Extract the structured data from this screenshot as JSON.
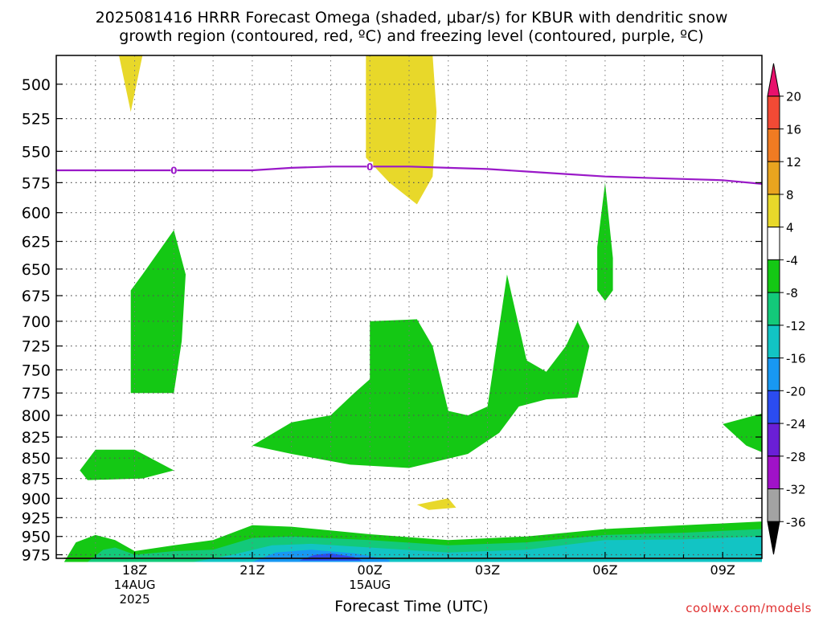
{
  "chart_data": {
    "type": "heatmap",
    "title_line1": "2025081416 HRRR Forecast Omega (shaded, μbar/s) for KBUR with dendritic snow",
    "title_line2": "growth region (contoured, red, ºC) and freezing level (contoured, purple, ºC)",
    "xlabel": "Forecast Time (UTC)",
    "credit": "coolwx.com/models",
    "y_ticks": [
      500,
      525,
      550,
      575,
      600,
      625,
      650,
      675,
      700,
      725,
      750,
      775,
      800,
      825,
      850,
      875,
      900,
      925,
      950,
      975
    ],
    "y_tick_labels": [
      "500",
      "525",
      "550",
      "575",
      "600",
      "625",
      "650",
      "675",
      "700",
      "725",
      "750",
      "775",
      "800",
      "825",
      "850",
      "875",
      "900",
      "925",
      "950",
      "975"
    ],
    "x_ticks": [
      {
        "label": "18Z",
        "sub1": "14AUG",
        "sub2": "2025",
        "hour": 18
      },
      {
        "label": "21Z",
        "sub1": "",
        "sub2": "",
        "hour": 21
      },
      {
        "label": "00Z",
        "sub1": "15AUG",
        "sub2": "",
        "hour": 24
      },
      {
        "label": "03Z",
        "sub1": "",
        "sub2": "",
        "hour": 27
      },
      {
        "label": "06Z",
        "sub1": "",
        "sub2": "",
        "hour": 30
      },
      {
        "label": "09Z",
        "sub1": "",
        "sub2": "",
        "hour": 33
      }
    ],
    "x_range_hours": [
      16,
      34
    ],
    "y_range_hpa": [
      480,
      980
    ],
    "y_scale": "log",
    "colorbar": {
      "labels": [
        "20",
        "16",
        "12",
        "8",
        "4",
        "-4",
        "-8",
        "-12",
        "-16",
        "-20",
        "-24",
        "-28",
        "-32",
        "-36"
      ],
      "colors": [
        "#e8116c",
        "#f24a35",
        "#f07b22",
        "#e9a41f",
        "#e8d82a",
        "#ffffff",
        "#14c814",
        "#13c97a",
        "#12c4c4",
        "#1898f2",
        "#2b4cf0",
        "#6a1fd6",
        "#a012c8",
        "#a3a3a3",
        "#000000"
      ]
    },
    "freezing_level": {
      "value": "0",
      "color": "#9a19c8",
      "points": [
        [
          16,
          565
        ],
        [
          18,
          565
        ],
        [
          19,
          565
        ],
        [
          20,
          565
        ],
        [
          21,
          565
        ],
        [
          22,
          563
        ],
        [
          23,
          562
        ],
        [
          24,
          562
        ],
        [
          25,
          562
        ],
        [
          26,
          563
        ],
        [
          27,
          564
        ],
        [
          28,
          566
        ],
        [
          29,
          568
        ],
        [
          30,
          570
        ],
        [
          31,
          571
        ],
        [
          32,
          572
        ],
        [
          33,
          573
        ],
        [
          34,
          576
        ]
      ],
      "label_hours": [
        19,
        24
      ]
    },
    "omega_regions": [
      {
        "value": 4,
        "color": "#e8d82a",
        "points": [
          [
            17.6,
            480
          ],
          [
            18.2,
            480
          ],
          [
            17.9,
            520
          ],
          [
            17.6,
            480
          ]
        ]
      },
      {
        "value": 4,
        "color": "#e8d82a",
        "points": [
          [
            23.9,
            480
          ],
          [
            25.6,
            480
          ],
          [
            25.7,
            520
          ],
          [
            25.6,
            570
          ],
          [
            25.2,
            593
          ],
          [
            24.5,
            575
          ],
          [
            23.9,
            555
          ],
          [
            23.9,
            515
          ],
          [
            23.9,
            480
          ]
        ]
      },
      {
        "value": 4,
        "color": "#e8d82a",
        "points": [
          [
            25.2,
            908
          ],
          [
            26,
            900
          ],
          [
            26.2,
            912
          ],
          [
            25.5,
            915
          ],
          [
            25.2,
            908
          ]
        ]
      },
      {
        "value": -4,
        "color": "#14c814",
        "points": [
          [
            17.9,
            775
          ],
          [
            17.9,
            670
          ],
          [
            18.2,
            655
          ],
          [
            19,
            615
          ],
          [
            19.3,
            655
          ],
          [
            19.2,
            720
          ],
          [
            19.0,
            775
          ],
          [
            17.9,
            775
          ]
        ]
      },
      {
        "value": -4,
        "color": "#14c814",
        "points": [
          [
            16.6,
            865
          ],
          [
            17.0,
            840
          ],
          [
            18.0,
            840
          ],
          [
            19.0,
            865
          ],
          [
            18.2,
            875
          ],
          [
            16.8,
            877
          ],
          [
            16.6,
            865
          ]
        ]
      },
      {
        "value": -4,
        "color": "#14c814",
        "points": [
          [
            21.0,
            835
          ],
          [
            22.0,
            808
          ],
          [
            23.0,
            800
          ],
          [
            23.6,
            775
          ],
          [
            24.0,
            760
          ],
          [
            24.0,
            700
          ],
          [
            25.2,
            698
          ],
          [
            25.6,
            725
          ],
          [
            26.0,
            795
          ],
          [
            26.5,
            800
          ],
          [
            27.0,
            790
          ],
          [
            27.5,
            655
          ],
          [
            28.0,
            740
          ],
          [
            28.5,
            752
          ],
          [
            29.0,
            725
          ],
          [
            29.3,
            700
          ],
          [
            29.6,
            725
          ],
          [
            29.3,
            780
          ],
          [
            28.5,
            782
          ],
          [
            27.8,
            790
          ],
          [
            27.3,
            820
          ],
          [
            26.5,
            845
          ],
          [
            25.0,
            862
          ],
          [
            23.5,
            858
          ],
          [
            22.0,
            845
          ],
          [
            21.0,
            835
          ]
        ]
      },
      {
        "value": -4,
        "color": "#14c814",
        "points": [
          [
            29.8,
            670
          ],
          [
            29.8,
            630
          ],
          [
            30.0,
            575
          ],
          [
            30.2,
            640
          ],
          [
            30.2,
            670
          ],
          [
            30.0,
            680
          ],
          [
            29.8,
            670
          ]
        ]
      },
      {
        "value": -4,
        "color": "#14c814",
        "points": [
          [
            33.0,
            810
          ],
          [
            34.0,
            798
          ],
          [
            34.0,
            843
          ],
          [
            33.6,
            835
          ],
          [
            33.0,
            810
          ]
        ]
      },
      {
        "value": -4,
        "color": "#14c814",
        "points": [
          [
            16.2,
            985
          ],
          [
            16.5,
            958
          ],
          [
            17.0,
            948
          ],
          [
            17.5,
            955
          ],
          [
            18.0,
            970
          ],
          [
            19.0,
            962
          ],
          [
            20.0,
            955
          ],
          [
            21.0,
            935
          ],
          [
            22.0,
            937
          ],
          [
            24.0,
            947
          ],
          [
            26.0,
            955
          ],
          [
            28.0,
            950
          ],
          [
            30.0,
            940
          ],
          [
            32.0,
            935
          ],
          [
            34.0,
            930
          ],
          [
            34.0,
            985
          ],
          [
            16.2,
            985
          ]
        ]
      },
      {
        "value": -8,
        "color": "#13c97a",
        "points": [
          [
            16.8,
            985
          ],
          [
            17.2,
            968
          ],
          [
            17.5,
            965
          ],
          [
            18.0,
            975
          ],
          [
            19.0,
            970
          ],
          [
            20.0,
            968
          ],
          [
            21.0,
            952
          ],
          [
            22.0,
            950
          ],
          [
            24.0,
            955
          ],
          [
            26.0,
            962
          ],
          [
            28.0,
            958
          ],
          [
            30.0,
            948
          ],
          [
            32.0,
            945
          ],
          [
            34.0,
            940
          ],
          [
            34.0,
            985
          ],
          [
            16.8,
            985
          ]
        ]
      },
      {
        "value": -12,
        "color": "#12c4c4",
        "points": [
          [
            19.5,
            985
          ],
          [
            20.5,
            975
          ],
          [
            21.5,
            962
          ],
          [
            22.5,
            960
          ],
          [
            24.0,
            965
          ],
          [
            26.0,
            972
          ],
          [
            28.0,
            968
          ],
          [
            30.0,
            955
          ],
          [
            32.0,
            954
          ],
          [
            34.0,
            950
          ],
          [
            34.0,
            985
          ],
          [
            19.5,
            985
          ]
        ]
      },
      {
        "value": -16,
        "color": "#1898f2",
        "points": [
          [
            21.0,
            985
          ],
          [
            21.6,
            972
          ],
          [
            22.5,
            968
          ],
          [
            23.6,
            973
          ],
          [
            24.5,
            982
          ],
          [
            24.5,
            985
          ],
          [
            21.0,
            985
          ]
        ]
      },
      {
        "value": -20,
        "color": "#2b4cf0",
        "points": [
          [
            22.2,
            983
          ],
          [
            22.6,
            975
          ],
          [
            23.0,
            973
          ],
          [
            23.6,
            978
          ],
          [
            23.8,
            983
          ],
          [
            22.2,
            983
          ]
        ]
      }
    ],
    "terrain": {
      "color": "#a0522d",
      "top_hpa": 980
    },
    "grid": true
  }
}
